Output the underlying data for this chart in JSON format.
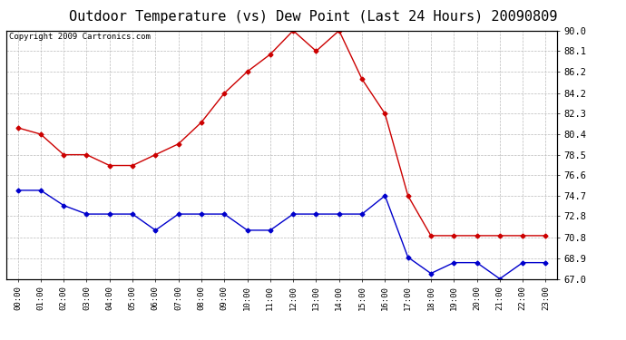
{
  "title": "Outdoor Temperature (vs) Dew Point (Last 24 Hours) 20090809",
  "copyright": "Copyright 2009 Cartronics.com",
  "hours": [
    "00:00",
    "01:00",
    "02:00",
    "03:00",
    "04:00",
    "05:00",
    "06:00",
    "07:00",
    "08:00",
    "09:00",
    "10:00",
    "11:00",
    "12:00",
    "13:00",
    "14:00",
    "15:00",
    "16:00",
    "17:00",
    "18:00",
    "19:00",
    "20:00",
    "21:00",
    "22:00",
    "23:00"
  ],
  "temp": [
    81.0,
    80.4,
    78.5,
    78.5,
    77.5,
    77.5,
    78.5,
    79.5,
    81.5,
    84.2,
    86.2,
    87.8,
    90.0,
    88.1,
    90.0,
    85.5,
    82.3,
    74.7,
    71.0,
    71.0,
    71.0,
    71.0,
    71.0,
    71.0
  ],
  "dew": [
    75.2,
    75.2,
    73.8,
    73.0,
    73.0,
    73.0,
    71.5,
    73.0,
    73.0,
    73.0,
    71.5,
    71.5,
    73.0,
    73.0,
    73.0,
    73.0,
    74.7,
    69.0,
    67.5,
    68.5,
    68.5,
    67.0,
    68.5,
    68.5
  ],
  "temp_color": "#cc0000",
  "dew_color": "#0000cc",
  "bg_color": "#ffffff",
  "plot_bg": "#ffffff",
  "grid_color": "#bbbbbb",
  "ylim": [
    67.0,
    90.0
  ],
  "yticks": [
    67.0,
    68.9,
    70.8,
    72.8,
    74.7,
    76.6,
    78.5,
    80.4,
    82.3,
    84.2,
    86.2,
    88.1,
    90.0
  ],
  "title_fontsize": 11,
  "copyright_fontsize": 6.5,
  "marker": "D",
  "markersize": 2.5
}
